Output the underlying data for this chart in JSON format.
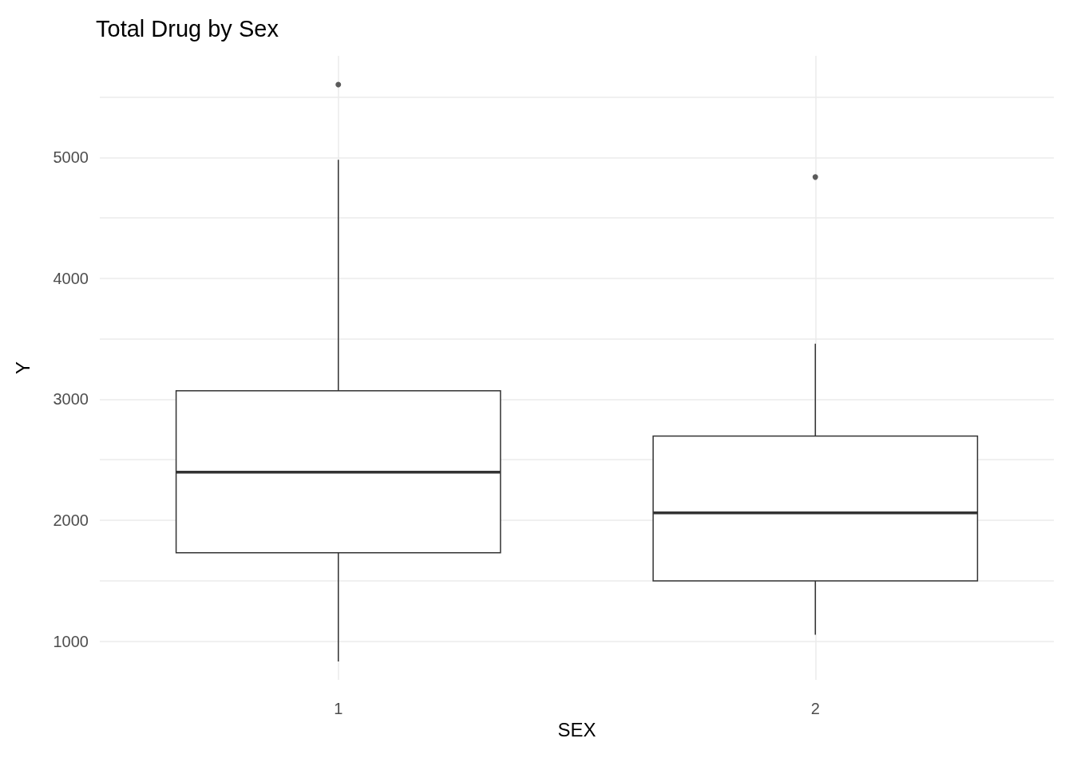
{
  "chart_data": {
    "type": "box",
    "title": "Total Drug by Sex",
    "xlabel": "SEX",
    "ylabel": "Y",
    "categories": [
      "1",
      "2"
    ],
    "boxes": [
      {
        "low": 832,
        "q1": 1731,
        "median": 2398,
        "q3": 3071,
        "high": 4980,
        "outliers": [
          5602
        ]
      },
      {
        "low": 1052,
        "q1": 1498,
        "median": 2061,
        "q3": 2696,
        "high": 3459,
        "outliers": [
          4838
        ]
      }
    ],
    "color": "#333333",
    "ylim": [
      680,
      5840
    ],
    "yticks": [
      1000,
      2000,
      3000,
      4000,
      5000
    ],
    "grid": true
  }
}
